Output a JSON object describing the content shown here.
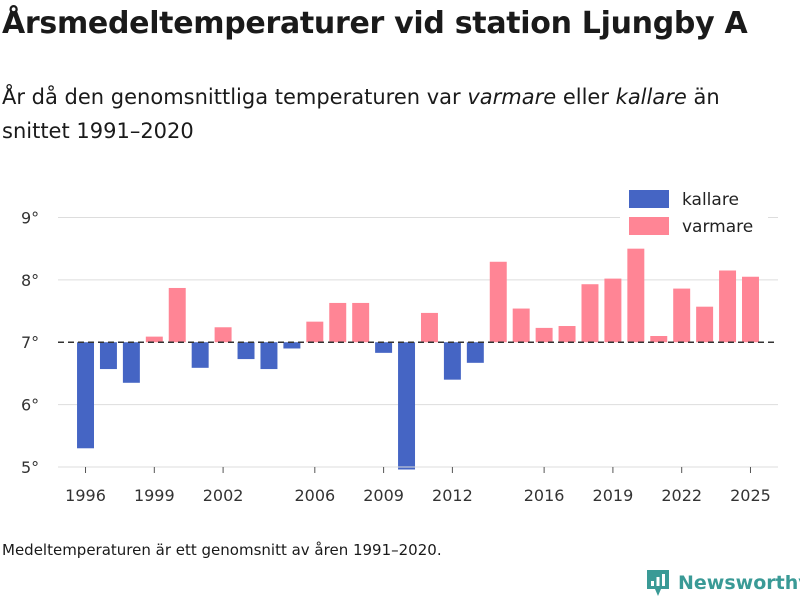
{
  "title": "Årsmedeltemperaturer vid station Ljungby A",
  "subtitle": {
    "part1": "År då den genomsnittliga temperaturen var ",
    "warm_word": "varmare",
    "part2": " eller ",
    "cold_word": "kallare",
    "part3": " än snittet 1991–2020"
  },
  "footnote": "Medeltemperaturen är ett genomsnitt av åren 1991–2020.",
  "brand": {
    "name": "Newsworthy"
  },
  "colors": {
    "cold": "#4565c4",
    "warm": "#ff8595",
    "grid": "#dddddd",
    "reference_line": "#333333"
  },
  "chart_data": {
    "type": "bar",
    "title": "Årsmedeltemperaturer vid station Ljungby A",
    "xlabel": "",
    "ylabel": "",
    "baseline": 7.0,
    "ylim": [
      5,
      9.2
    ],
    "xlim": [
      1994.8,
      2026.2
    ],
    "y_ticks": [
      5,
      6,
      7,
      8,
      9
    ],
    "y_tick_labels": [
      "5°",
      "6°",
      "7°",
      "8°",
      "9°"
    ],
    "x_ticks": [
      1996,
      1999,
      2002,
      2006,
      2009,
      2012,
      2016,
      2019,
      2022,
      2025
    ],
    "x_tick_labels": [
      "1996",
      "1999",
      "2002",
      "2006",
      "2009",
      "2012",
      "2016",
      "2019",
      "2022",
      "2025"
    ],
    "legend": {
      "position": "top-right",
      "entries": [
        {
          "key": "cold",
          "label": "kallare"
        },
        {
          "key": "warm",
          "label": "varmare"
        }
      ]
    },
    "categories": [
      1996,
      1997,
      1998,
      1999,
      2000,
      2001,
      2002,
      2003,
      2004,
      2005,
      2006,
      2007,
      2008,
      2009,
      2010,
      2011,
      2012,
      2013,
      2014,
      2015,
      2016,
      2017,
      2018,
      2019,
      2020,
      2021,
      2022,
      2023,
      2024,
      2025
    ],
    "values": [
      5.3,
      6.57,
      6.35,
      7.09,
      7.87,
      6.59,
      7.24,
      6.73,
      6.57,
      6.9,
      7.33,
      7.63,
      7.63,
      6.83,
      4.96,
      7.47,
      6.4,
      6.67,
      8.29,
      7.54,
      7.23,
      7.26,
      7.93,
      8.02,
      8.5,
      7.1,
      7.86,
      7.57,
      8.15,
      8.05
    ]
  }
}
